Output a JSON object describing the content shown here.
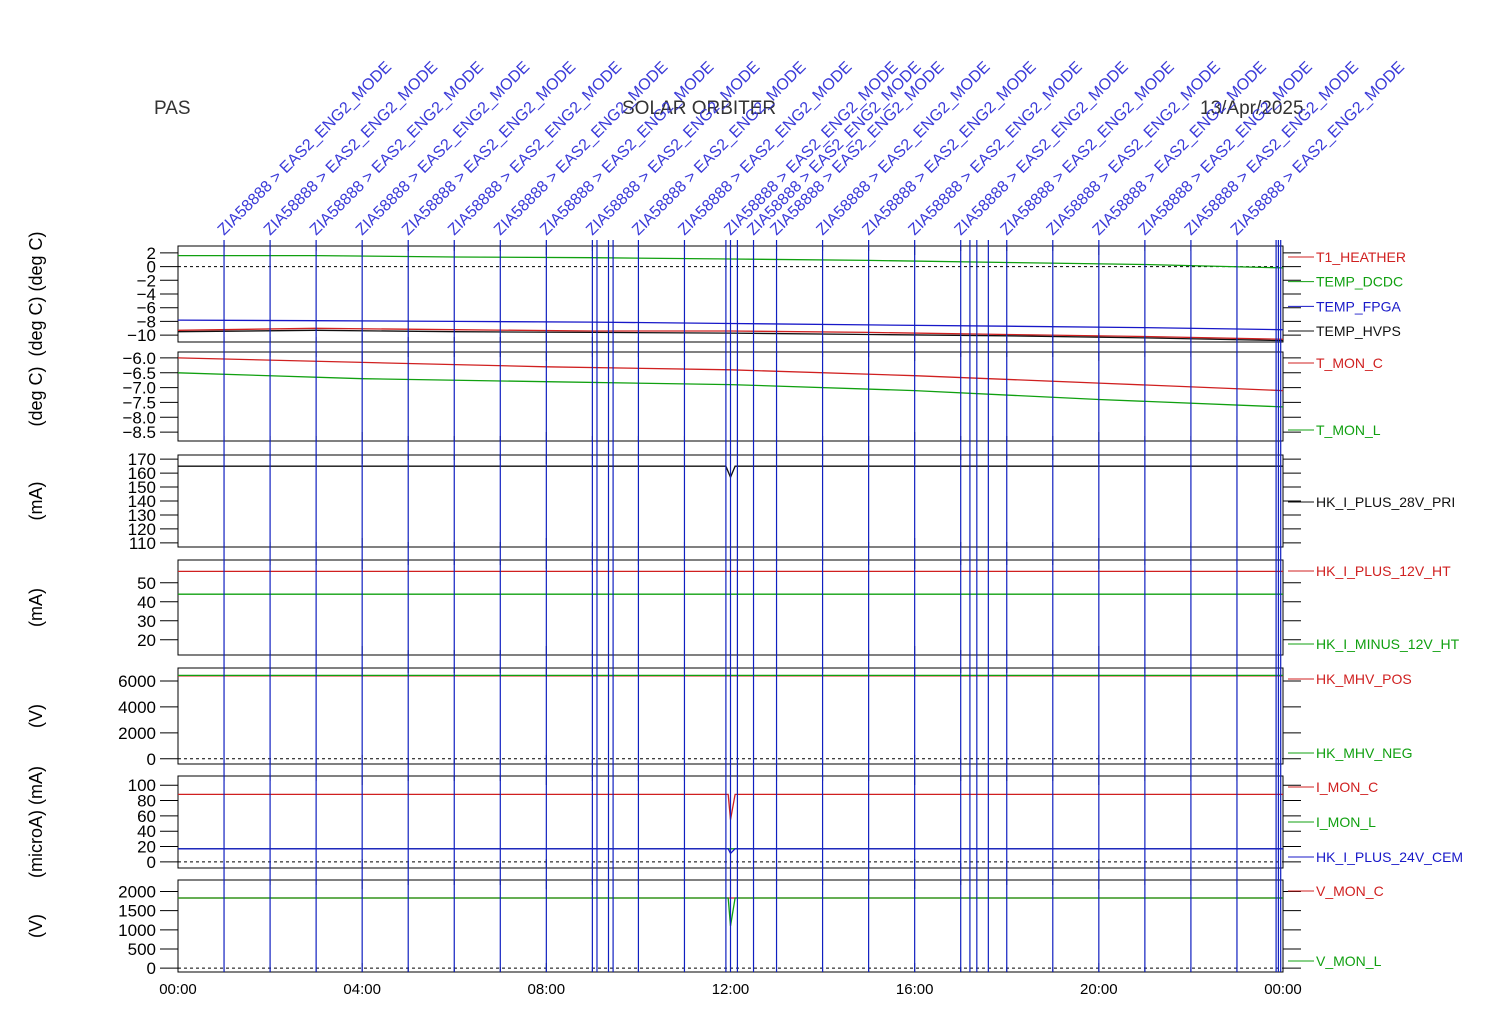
{
  "header": {
    "instrument": "PAS",
    "mission": "SOLAR ORBITER",
    "date": "13/Apr/2025"
  },
  "colors": {
    "red": "#d02020",
    "green": "#10a010",
    "blue": "#1818c8",
    "black": "#101010",
    "event": "#1020c0",
    "event_text": "#3a3ad8"
  },
  "chart_data": {
    "type": "line",
    "x_axis": {
      "range_hours": [
        0,
        24
      ],
      "tick_labels": [
        "00:00",
        "04:00",
        "08:00",
        "12:00",
        "16:00",
        "20:00",
        "00:00"
      ]
    },
    "event_markers": [
      {
        "hour": 1.0,
        "label": "ZIA58888 > EAS2_ENG2_MODE"
      },
      {
        "hour": 2.0,
        "label": "ZIA58888 > EAS2_ENG2_MODE"
      },
      {
        "hour": 3.0,
        "label": "ZIA58888 > EAS2_ENG2_MODE"
      },
      {
        "hour": 4.0,
        "label": "ZIA58888 > EAS2_ENG2_MODE"
      },
      {
        "hour": 5.0,
        "label": "ZIA58888 > EAS2_ENG2_MODE"
      },
      {
        "hour": 6.0,
        "label": "ZIA58888 > EAS2_ENG2_MODE"
      },
      {
        "hour": 7.0,
        "label": "ZIA58888 > EAS2_ENG2_MODE"
      },
      {
        "hour": 8.0,
        "label": "ZIA58888 > EAS2_ENG2_MODE"
      },
      {
        "hour": 9.0,
        "label": "ZIA58888 > EAS2_ENG2_MODE"
      },
      {
        "hour": 9.1,
        "label": ""
      },
      {
        "hour": 9.35,
        "label": ""
      },
      {
        "hour": 9.45,
        "label": ""
      },
      {
        "hour": 10.0,
        "label": "ZIA58888 > EAS2_ENG2_MODE"
      },
      {
        "hour": 11.0,
        "label": "ZIA58888 > EAS2_ENG2_MODE"
      },
      {
        "hour": 11.9,
        "label": ""
      },
      {
        "hour": 12.0,
        "label": "ZIA58888 > EAS2_ENG2_MODE"
      },
      {
        "hour": 12.15,
        "label": ""
      },
      {
        "hour": 12.5,
        "label": "ZIA58888 > EAS2_ENG2_MODE"
      },
      {
        "hour": 13.0,
        "label": "ZIA58888 > EAS2_ENG2_MODE"
      },
      {
        "hour": 14.0,
        "label": "ZIA58888 > EAS2_ENG2_MODE"
      },
      {
        "hour": 15.0,
        "label": "ZIA58888 > EAS2_ENG2_MODE"
      },
      {
        "hour": 16.0,
        "label": "ZIA58888 > EAS2_ENG2_MODE"
      },
      {
        "hour": 17.0,
        "label": "ZIA58888 > EAS2_ENG2_MODE"
      },
      {
        "hour": 17.2,
        "label": ""
      },
      {
        "hour": 17.35,
        "label": ""
      },
      {
        "hour": 17.6,
        "label": ""
      },
      {
        "hour": 18.0,
        "label": "ZIA58888 > EAS2_ENG2_MODE"
      },
      {
        "hour": 19.0,
        "label": "ZIA58888 > EAS2_ENG2_MODE"
      },
      {
        "hour": 20.0,
        "label": "ZIA58888 > EAS2_ENG2_MODE"
      },
      {
        "hour": 21.0,
        "label": "ZIA58888 > EAS2_ENG2_MODE"
      },
      {
        "hour": 22.0,
        "label": "ZIA58888 > EAS2_ENG2_MODE"
      },
      {
        "hour": 23.0,
        "label": "ZIA58888 > EAS2_ENG2_MODE"
      },
      {
        "hour": 23.85,
        "label": ""
      },
      {
        "hour": 23.9,
        "label": ""
      },
      {
        "hour": 23.95,
        "label": ""
      }
    ],
    "panels": [
      {
        "ylabel": "(deg C) (deg C)",
        "ylim": [
          -11,
          3
        ],
        "ticks": [
          2,
          0,
          -2,
          -4,
          -6,
          -8,
          -10
        ],
        "tick_labels": [
          "2",
          "0",
          "−2",
          "−4",
          "−6",
          "−8",
          "−10"
        ],
        "dashed_zero": true,
        "series": [
          {
            "name": "T1_HEATHER",
            "color": "red",
            "x": [
              0,
              3,
              6,
              9,
              12,
              15,
              18,
              21,
              24
            ],
            "y": [
              -9.3,
              -9.0,
              -9.2,
              -9.4,
              -9.4,
              -9.6,
              -9.9,
              -10.2,
              -10.6
            ]
          },
          {
            "name": "TEMP_DCDC",
            "color": "green",
            "x": [
              0,
              3,
              6,
              9,
              12,
              15,
              18,
              21,
              24
            ],
            "y": [
              1.6,
              1.6,
              1.4,
              1.3,
              1.1,
              0.9,
              0.6,
              0.3,
              -0.2
            ]
          },
          {
            "name": "TEMP_FPGA",
            "color": "blue",
            "x": [
              0,
              3,
              6,
              9,
              12,
              15,
              18,
              21,
              24
            ],
            "y": [
              -7.8,
              -7.9,
              -8.0,
              -8.1,
              -8.3,
              -8.5,
              -8.7,
              -8.9,
              -9.2
            ]
          },
          {
            "name": "TEMP_HVPS",
            "color": "black",
            "x": [
              0,
              3,
              6,
              9,
              12,
              15,
              18,
              21,
              24
            ],
            "y": [
              -9.5,
              -9.3,
              -9.5,
              -9.6,
              -9.7,
              -9.9,
              -10.1,
              -10.4,
              -10.8
            ]
          }
        ]
      },
      {
        "ylabel": "(deg C)",
        "ylim": [
          -8.8,
          -5.8
        ],
        "ticks": [
          -6.0,
          -6.5,
          -7.0,
          -7.5,
          -8.0,
          -8.5
        ],
        "tick_labels": [
          "−6.0",
          "−6.5",
          "−7.0",
          "−7.5",
          "−8.0",
          "−8.5"
        ],
        "dashed_zero": false,
        "series": [
          {
            "name": "T_MON_C",
            "color": "red",
            "x": [
              0,
              4,
              8,
              12,
              16,
              20,
              24
            ],
            "y": [
              -6.0,
              -6.15,
              -6.3,
              -6.4,
              -6.6,
              -6.85,
              -7.1
            ]
          },
          {
            "name": "T_MON_L",
            "color": "green",
            "x": [
              0,
              4,
              8,
              12,
              16,
              20,
              24
            ],
            "y": [
              -6.5,
              -6.7,
              -6.8,
              -6.9,
              -7.1,
              -7.4,
              -7.65
            ]
          }
        ]
      },
      {
        "ylabel": "(mA)",
        "ylim": [
          107,
          173
        ],
        "ticks": [
          170,
          160,
          150,
          140,
          130,
          120,
          110
        ],
        "tick_labels": [
          "170",
          "160",
          "150",
          "140",
          "130",
          "120",
          "110"
        ],
        "dashed_zero": false,
        "series": [
          {
            "name": "HK_I_PLUS_28V_PRI",
            "color": "black",
            "x": [
              0,
              11.9,
              12.0,
              12.1,
              24
            ],
            "y": [
              165,
              165,
              157,
              165,
              165
            ]
          }
        ]
      },
      {
        "ylabel": "(mA)",
        "ylim": [
          12,
          62
        ],
        "ticks": [
          50,
          40,
          30,
          20
        ],
        "tick_labels": [
          "50",
          "40",
          "30",
          "20"
        ],
        "dashed_zero": false,
        "series": [
          {
            "name": "HK_I_PLUS_12V_HT",
            "color": "red",
            "x": [
              0,
              24
            ],
            "y": [
              56,
              56
            ]
          },
          {
            "name": "HK_I_MINUS_12V_HT",
            "color": "green",
            "x": [
              0,
              24
            ],
            "y": [
              44,
              44
            ]
          }
        ]
      },
      {
        "ylabel": "(V)",
        "ylim": [
          -400,
          7000
        ],
        "ticks": [
          6000,
          4000,
          2000,
          0
        ],
        "tick_labels": [
          "6000",
          "4000",
          "2000",
          "0"
        ],
        "dashed_zero": true,
        "series": [
          {
            "name": "HK_MHV_POS",
            "color": "red",
            "x": [
              0,
              24
            ],
            "y": [
              6400,
              6400
            ]
          },
          {
            "name": "HK_MHV_NEG",
            "color": "green",
            "x": [
              0,
              24
            ],
            "y": [
              6430,
              6430
            ]
          }
        ]
      },
      {
        "ylabel": "(microA) (mA)",
        "ylim": [
          -8,
          112
        ],
        "ticks": [
          100,
          80,
          60,
          40,
          20,
          0
        ],
        "tick_labels": [
          "100",
          "80",
          "60",
          "40",
          "20",
          "0"
        ],
        "dashed_zero": true,
        "series": [
          {
            "name": "I_MON_C",
            "color": "red",
            "x": [
              0,
              11.95,
              12.0,
              12.1,
              24
            ],
            "y": [
              88,
              88,
              55,
              88,
              88
            ]
          },
          {
            "name": "I_MON_L",
            "color": "green",
            "x": [
              0,
              24
            ],
            "y": [
              17,
              17
            ]
          },
          {
            "name": "HK_I_PLUS_24V_CEM",
            "color": "blue",
            "x": [
              0,
              11.95,
              12.0,
              12.1,
              24
            ],
            "y": [
              17,
              17,
              11,
              17,
              17
            ]
          }
        ]
      },
      {
        "ylabel": "(V)",
        "ylim": [
          -100,
          2300
        ],
        "ticks": [
          2000,
          1500,
          1000,
          500,
          0
        ],
        "tick_labels": [
          "2000",
          "1500",
          "1000",
          "500",
          "0"
        ],
        "dashed_zero": true,
        "series": [
          {
            "name": "V_MON_C",
            "color": "red",
            "x": [
              0,
              24
            ],
            "y": [
              1830,
              1830
            ]
          },
          {
            "name": "V_MON_L",
            "color": "green",
            "x": [
              0,
              11.95,
              12.0,
              12.1,
              24
            ],
            "y": [
              1830,
              1830,
              1100,
              1830,
              1830
            ]
          }
        ]
      }
    ]
  }
}
